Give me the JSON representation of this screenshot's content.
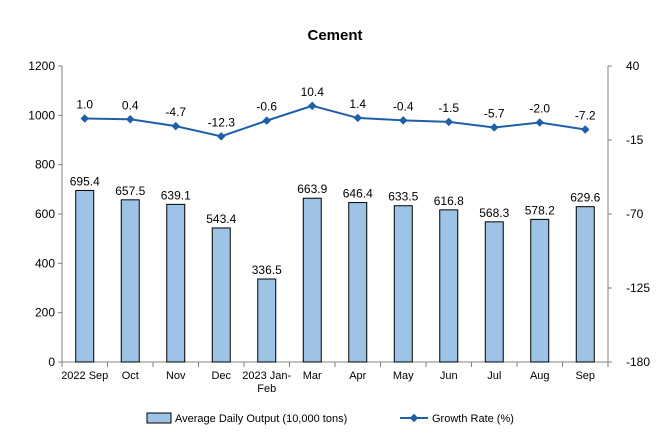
{
  "chart_data": {
    "type": "bar+line",
    "title": "Cement",
    "categories": [
      [
        "2022 Sep"
      ],
      [
        "Oct"
      ],
      [
        "Nov"
      ],
      [
        "Dec"
      ],
      [
        "2023 Jan-",
        "Feb"
      ],
      [
        "Mar"
      ],
      [
        "Apr"
      ],
      [
        "May"
      ],
      [
        "Jun"
      ],
      [
        "Jul"
      ],
      [
        "Aug"
      ],
      [
        "Sep"
      ]
    ],
    "series": [
      {
        "name": "Average Daily Output (10,000 tons)",
        "type": "bar",
        "axis": "left",
        "color": "#9DC3E6",
        "values": [
          695.4,
          657.5,
          639.1,
          543.4,
          336.5,
          663.9,
          646.4,
          633.5,
          616.8,
          568.3,
          578.2,
          629.6
        ],
        "labels": [
          "695.4",
          "657.5",
          "639.1",
          "543.4",
          "336.5",
          "663.9",
          "646.4",
          "633.5",
          "616.8",
          "568.3",
          "578.2",
          "629.6"
        ]
      },
      {
        "name": "Growth Rate (%)",
        "type": "line",
        "axis": "right",
        "color": "#1F5FA8",
        "values": [
          1.0,
          0.4,
          -4.7,
          -12.3,
          -0.6,
          10.4,
          1.4,
          -0.4,
          -1.5,
          -5.7,
          -2.0,
          -7.2
        ],
        "labels": [
          "1.0",
          "0.4",
          "-4.7",
          "-12.3",
          "-0.6",
          "10.4",
          "1.4",
          "-0.4",
          "-1.5",
          "-5.7",
          "-2.0",
          "-7.2"
        ]
      }
    ],
    "y_left": {
      "min": 0,
      "max": 1200,
      "ticks": [
        "0",
        "200",
        "400",
        "600",
        "800",
        "1000",
        "1200"
      ]
    },
    "y_right": {
      "min": -180,
      "max": 40,
      "ticks": [
        "-180",
        "-125",
        "-70",
        "-15",
        "40"
      ]
    },
    "grid": false,
    "legend_position": "bottom"
  }
}
